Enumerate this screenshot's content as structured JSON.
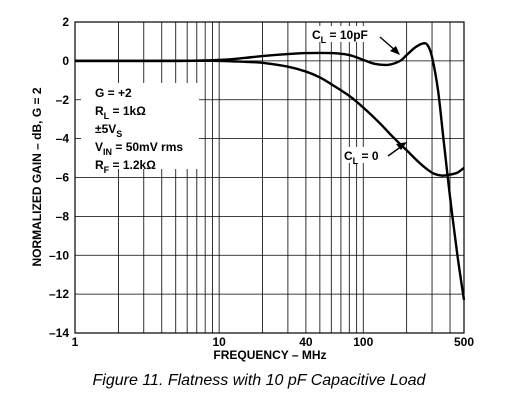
{
  "chart_data": {
    "type": "line",
    "xlabel": "FREQUENCY – MHz",
    "ylabel": "NORMALIZED GAIN – dB, G = 2",
    "xscale": "log",
    "xlim": [
      1,
      500
    ],
    "ylim": [
      -14,
      2
    ],
    "x_tick_labels": [
      "1",
      "10",
      "40",
      "100",
      "500"
    ],
    "x_tick_values": [
      1,
      10,
      40,
      100,
      500
    ],
    "y_tick_values": [
      2,
      0,
      -2,
      -4,
      -6,
      -8,
      -10,
      -12,
      -14
    ],
    "y_tick_labels": [
      "2",
      "0",
      "–2",
      "–4",
      "–6",
      "–8",
      "–10",
      "–12",
      "–14"
    ],
    "grid": true,
    "conditions": [
      "G = +2",
      "RL = 1kΩ",
      "±5VS",
      "VIN = 50mV rms",
      "RF = 1.2kΩ"
    ],
    "series": [
      {
        "name": "CL = 10pF",
        "x": [
          1,
          5,
          10,
          15,
          20,
          30,
          40,
          60,
          80,
          100,
          120,
          150,
          180,
          200,
          230,
          260,
          280,
          300,
          330,
          360,
          400,
          450,
          500
        ],
        "y": [
          0,
          0,
          0.05,
          0.15,
          0.25,
          0.35,
          0.4,
          0.4,
          0.3,
          0.05,
          -0.15,
          -0.2,
          0,
          0.3,
          0.7,
          0.9,
          0.8,
          0.2,
          -1.5,
          -4,
          -7,
          -10,
          -12.3
        ]
      },
      {
        "name": "CL = 0",
        "x": [
          1,
          5,
          10,
          15,
          20,
          30,
          40,
          50,
          60,
          80,
          100,
          130,
          160,
          200,
          250,
          300,
          350,
          400,
          450,
          500
        ],
        "y": [
          0,
          0,
          0,
          -0.05,
          -0.1,
          -0.3,
          -0.55,
          -0.85,
          -1.2,
          -1.8,
          -2.4,
          -3.2,
          -3.9,
          -4.6,
          -5.3,
          -5.75,
          -5.9,
          -5.85,
          -5.75,
          -5.5
        ]
      }
    ],
    "caption": "Figure 11. Flatness with 10 pF Capacitive Load"
  }
}
